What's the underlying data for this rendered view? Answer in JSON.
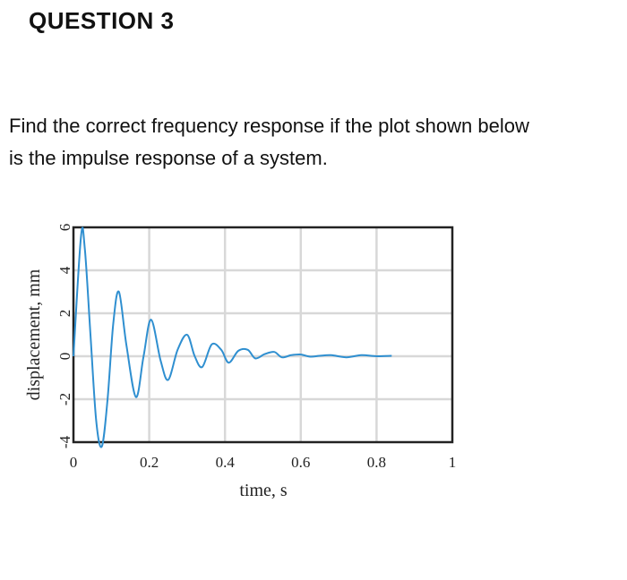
{
  "question": {
    "title": "QUESTION 3",
    "text_line1": "Find the correct frequency response if the plot shown below",
    "text_line2": "is the impulse response of a system."
  },
  "chart_data": {
    "type": "line",
    "xlabel": "time, s",
    "ylabel": "displacement, mm",
    "xlim": [
      0,
      1
    ],
    "ylim": [
      -4,
      6
    ],
    "xticks": [
      "0",
      "0.2",
      "0.4",
      "0.6",
      "0.8",
      "1"
    ],
    "yticks": [
      "6",
      "4",
      "2",
      "0",
      "-2",
      "-4"
    ],
    "grid": true,
    "color": "#2f8fd0",
    "series": [
      {
        "x": [
          0,
          0.02,
          0.03,
          0.045,
          0.06,
          0.075,
          0.09,
          0.105,
          0.12,
          0.14,
          0.165,
          0.185,
          0.205,
          0.23,
          0.25,
          0.275,
          0.3,
          0.32,
          0.34,
          0.365,
          0.39,
          0.41,
          0.435,
          0.46,
          0.48,
          0.505,
          0.53,
          0.55,
          0.575,
          0.6,
          0.625,
          0.65,
          0.68,
          0.72,
          0.76,
          0.8,
          0.84
        ],
        "y": [
          0,
          5.6,
          5.0,
          1.0,
          -3.0,
          -4.2,
          -2.0,
          1.5,
          3.0,
          0.5,
          -1.9,
          0.0,
          1.7,
          -0.2,
          -1.1,
          0.3,
          1.0,
          0.0,
          -0.5,
          0.55,
          0.3,
          -0.3,
          0.25,
          0.3,
          -0.1,
          0.1,
          0.2,
          -0.05,
          0.05,
          0.08,
          -0.02,
          0.02,
          0.05,
          -0.05,
          0.05,
          0.0,
          0.02
        ]
      }
    ]
  }
}
